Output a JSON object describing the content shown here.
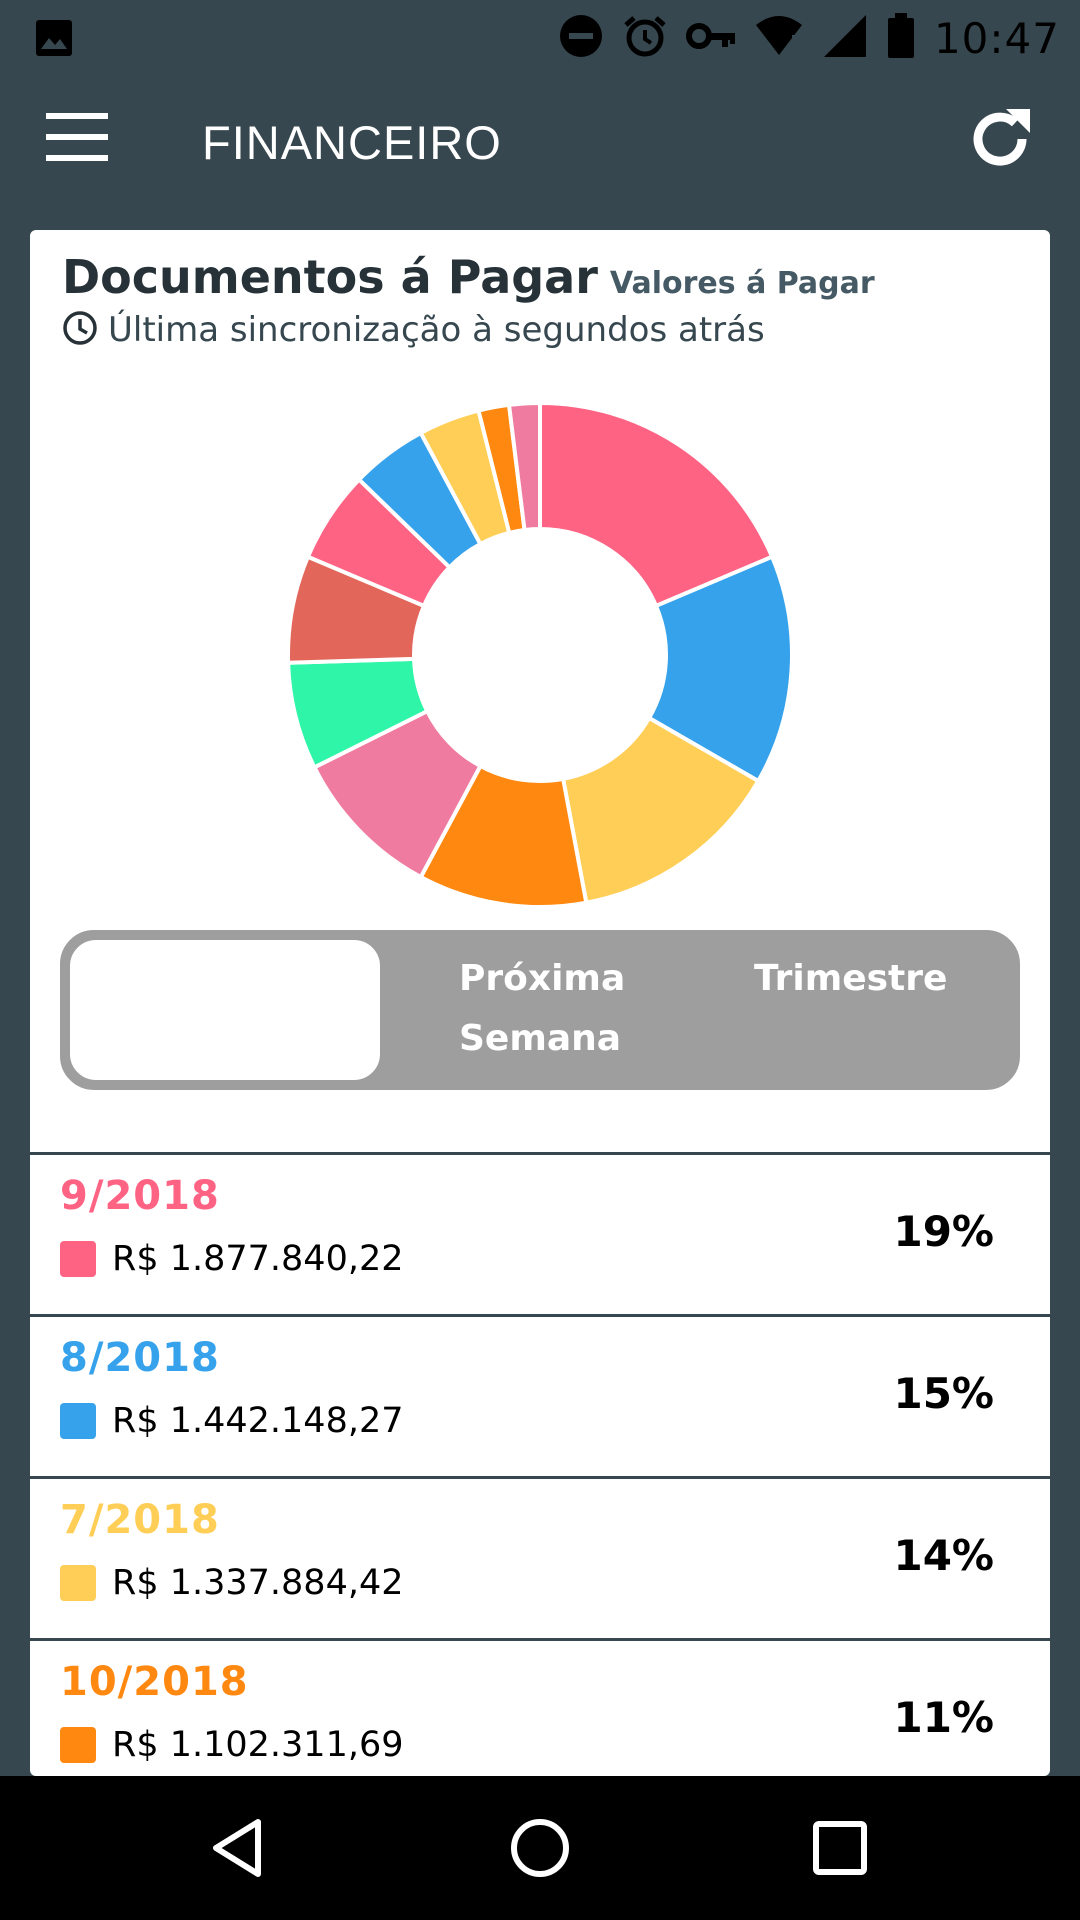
{
  "status_bar": {
    "time": "10:47",
    "icons": [
      "image-icon",
      "do-not-disturb-icon",
      "alarm-icon",
      "vpn-key-icon",
      "wifi-icon",
      "signal-icon",
      "battery-icon"
    ]
  },
  "app_bar": {
    "title": "FINANCEIRO",
    "menu_icon": "menu-icon",
    "refresh_icon": "refresh-icon"
  },
  "card": {
    "title": "Documentos á Pagar",
    "subtitle": "Valores á Pagar",
    "sync_text": "Última sincronização à segundos atrás"
  },
  "segment": {
    "options": [
      "",
      "Próxima Semana",
      "Trimestre"
    ],
    "selected_index": 0
  },
  "chart_data": {
    "type": "pie",
    "donut": true,
    "slices": [
      {
        "label": "9/2018",
        "value": 19,
        "color": "#ff6384"
      },
      {
        "label": "8/2018",
        "value": 15,
        "color": "#36a2eb"
      },
      {
        "label": "7/2018",
        "value": 14,
        "color": "#ffce56"
      },
      {
        "label": "10/2018",
        "value": 11,
        "color": "#ff8811"
      },
      {
        "label": "",
        "value": 10,
        "color": "#f07ba0"
      },
      {
        "label": "",
        "value": 7,
        "color": "#2ff5a8"
      },
      {
        "label": "",
        "value": 7,
        "color": "#e3665a"
      },
      {
        "label": "",
        "value": 6,
        "color": "#ff6384"
      },
      {
        "label": "",
        "value": 5,
        "color": "#36a2eb"
      },
      {
        "label": "",
        "value": 4,
        "color": "#ffce56"
      },
      {
        "label": "",
        "value": 2,
        "color": "#ff8811"
      },
      {
        "label": "",
        "value": 2,
        "color": "#f07ba0"
      }
    ]
  },
  "list": [
    {
      "date": "9/2018",
      "value": "R$ 1.877.840,22",
      "percent": "19%",
      "color": "#ff6384"
    },
    {
      "date": "8/2018",
      "value": "R$ 1.442.148,27",
      "percent": "15%",
      "color": "#36a2eb"
    },
    {
      "date": "7/2018",
      "value": "R$ 1.337.884,42",
      "percent": "14%",
      "color": "#ffce56"
    },
    {
      "date": "10/2018",
      "value": "R$ 1.102.311,69",
      "percent": "11%",
      "color": "#ff8811"
    }
  ],
  "nav_bar": {
    "icons": [
      "back-icon",
      "home-icon",
      "recents-icon"
    ]
  }
}
